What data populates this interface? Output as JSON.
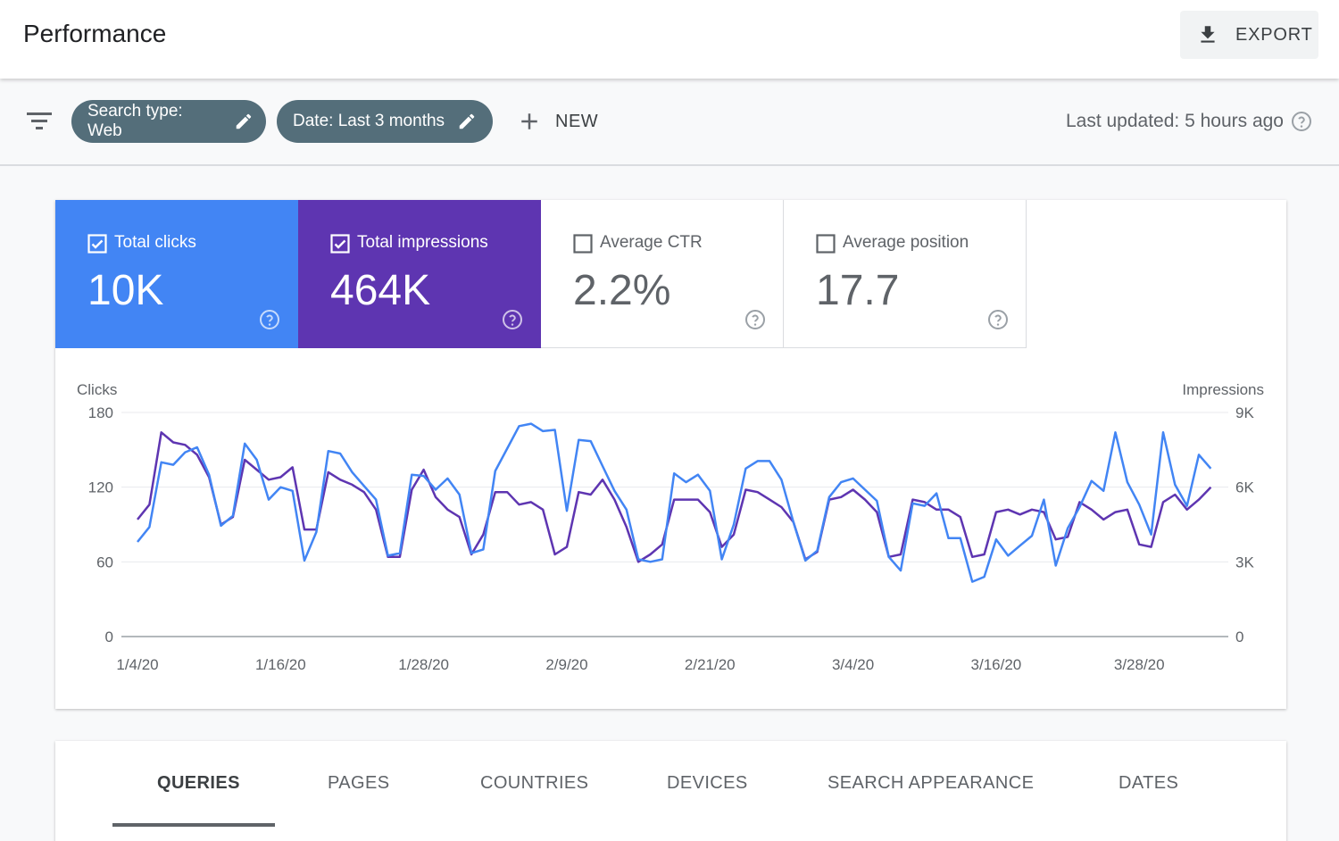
{
  "header": {
    "title": "Performance",
    "export_label": "EXPORT"
  },
  "filters": {
    "chips": [
      "Search type: Web",
      "Date: Last 3 months"
    ],
    "new_label": "NEW",
    "last_updated": "Last updated: 5 hours ago"
  },
  "metrics": [
    {
      "label": "Total clicks",
      "value": "10K",
      "checked": true,
      "color": "#4285f4"
    },
    {
      "label": "Total impressions",
      "value": "464K",
      "checked": true,
      "color": "#5e35b1"
    },
    {
      "label": "Average CTR",
      "value": "2.2%",
      "checked": false
    },
    {
      "label": "Average position",
      "value": "17.7",
      "checked": false
    }
  ],
  "chart_data": {
    "type": "line",
    "ylabel_left": "Clicks",
    "ylabel_right": "Impressions",
    "y_left_ticks": [
      "180",
      "120",
      "60",
      "0"
    ],
    "y_right_ticks": [
      "9K",
      "6K",
      "3K",
      "0"
    ],
    "ylim_left": [
      0,
      180
    ],
    "ylim_right": [
      0,
      9000
    ],
    "x_tick_labels": [
      "1/4/20",
      "1/16/20",
      "1/28/20",
      "2/9/20",
      "2/21/20",
      "3/4/20",
      "3/16/20",
      "3/28/20"
    ],
    "x_tick_index": [
      0,
      12,
      24,
      36,
      48,
      60,
      72,
      84
    ],
    "grid": true,
    "series": [
      {
        "name": "Total clicks",
        "axis": "left",
        "color": "#4285f4",
        "values": [
          76,
          88,
          140,
          138,
          148,
          152,
          130,
          89,
          97,
          155,
          142,
          110,
          120,
          117,
          61,
          84,
          149,
          147,
          132,
          121,
          110,
          65,
          67,
          130,
          129,
          118,
          127,
          114,
          67,
          70,
          133,
          151,
          169,
          171,
          165,
          166,
          101,
          158,
          157,
          137,
          117,
          102,
          62,
          60,
          62,
          131,
          124,
          130,
          117,
          62,
          90,
          135,
          141,
          141,
          126,
          92,
          61,
          69,
          112,
          124,
          127,
          118,
          109,
          64,
          53,
          107,
          105,
          115,
          79,
          79,
          44,
          48,
          78,
          65,
          73,
          81,
          110,
          57,
          87,
          104,
          125,
          117,
          164,
          124,
          106,
          82,
          164,
          122,
          105,
          146,
          135
        ]
      },
      {
        "name": "Total impressions",
        "axis": "right",
        "values": [
          4700,
          5300,
          8200,
          7800,
          7700,
          7300,
          6400,
          4500,
          4800,
          7100,
          6700,
          6300,
          6400,
          6800,
          4300,
          4300,
          6600,
          6300,
          6100,
          5800,
          5100,
          3200,
          3200,
          5900,
          6700,
          5600,
          5100,
          4800,
          3300,
          4100,
          5800,
          5800,
          5300,
          5400,
          5100,
          3300,
          3600,
          5800,
          5700,
          6300,
          5500,
          4400,
          3000,
          3300,
          3700,
          5500,
          5500,
          5500,
          5000,
          3600,
          4100,
          5900,
          5800,
          5500,
          5200,
          4600,
          3100,
          3400,
          5500,
          5600,
          5900,
          5500,
          5000,
          3200,
          3300,
          5500,
          5400,
          5100,
          5100,
          4800,
          3200,
          3300,
          5000,
          5100,
          4900,
          5100,
          5000,
          3900,
          4000,
          5400,
          5100,
          4700,
          5000,
          5100,
          3700,
          3600,
          5400,
          5700,
          5100,
          5500,
          6000
        ]
      }
    ]
  },
  "tabs": [
    "QUERIES",
    "PAGES",
    "COUNTRIES",
    "DEVICES",
    "SEARCH APPEARANCE",
    "DATES"
  ],
  "active_tab": "QUERIES"
}
